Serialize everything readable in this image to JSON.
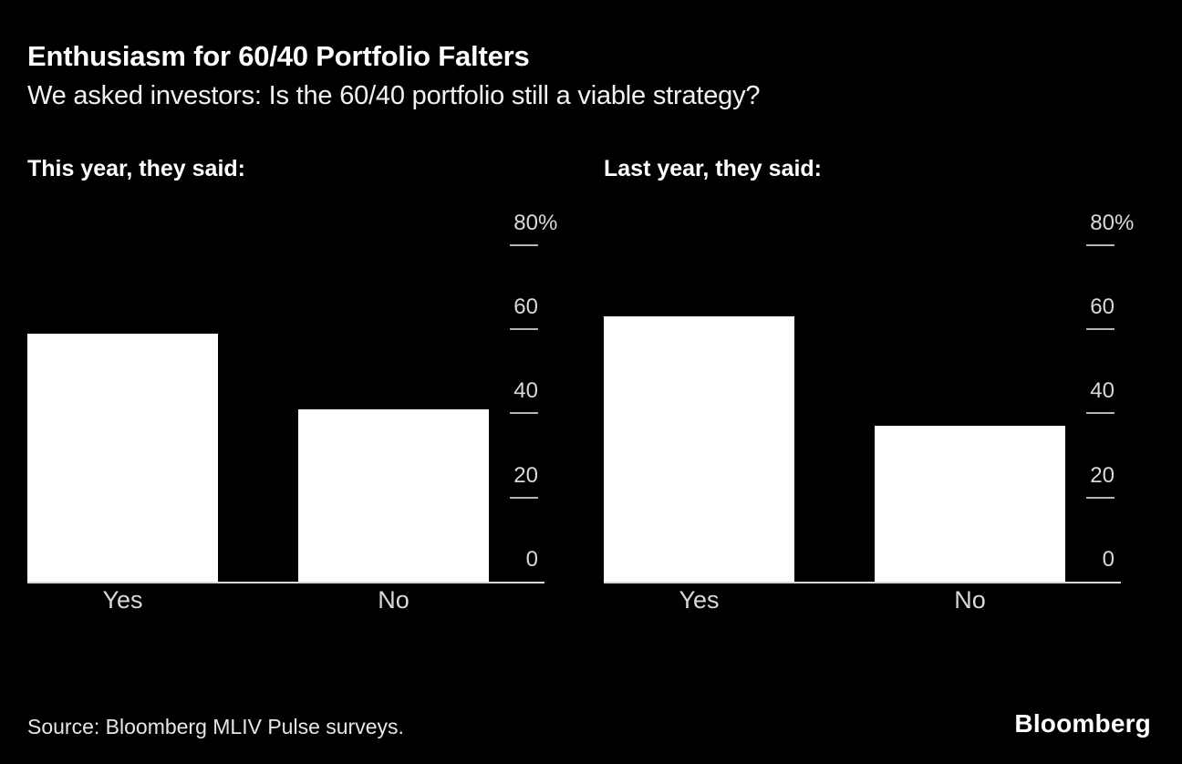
{
  "header": {
    "title": "Enthusiasm for 60/40 Portfolio Falters",
    "subtitle": "We asked investors: Is the 60/40 portfolio still a viable strategy?"
  },
  "chart_data": [
    {
      "type": "bar",
      "heading": "This year, they said:",
      "categories": [
        "Yes",
        "No"
      ],
      "values": [
        59,
        41
      ],
      "unit": "%",
      "ylim": [
        0,
        80
      ],
      "yticks": [
        0,
        20,
        40,
        60,
        80
      ],
      "ytick_labels": [
        "0",
        "20",
        "40",
        "60",
        "80%"
      ],
      "axis_side": "right",
      "grid": false,
      "legend": "none"
    },
    {
      "type": "bar",
      "heading": "Last year, they said:",
      "categories": [
        "Yes",
        "No"
      ],
      "values": [
        63,
        37
      ],
      "unit": "%",
      "ylim": [
        0,
        80
      ],
      "yticks": [
        0,
        20,
        40,
        60,
        80
      ],
      "ytick_labels": [
        "0",
        "20",
        "40",
        "60",
        "80%"
      ],
      "axis_side": "right",
      "grid": false,
      "legend": "none"
    }
  ],
  "footer": {
    "source": "Source: Bloomberg MLIV Pulse surveys.",
    "logo": "Bloomberg"
  },
  "colors": {
    "background": "#000000",
    "bar": "#ffffff",
    "title_text": "#ffffff",
    "muted_text": "#d9d9d9",
    "axis_line": "#d9d9d9",
    "tick_dash": "#b3b3b3"
  }
}
